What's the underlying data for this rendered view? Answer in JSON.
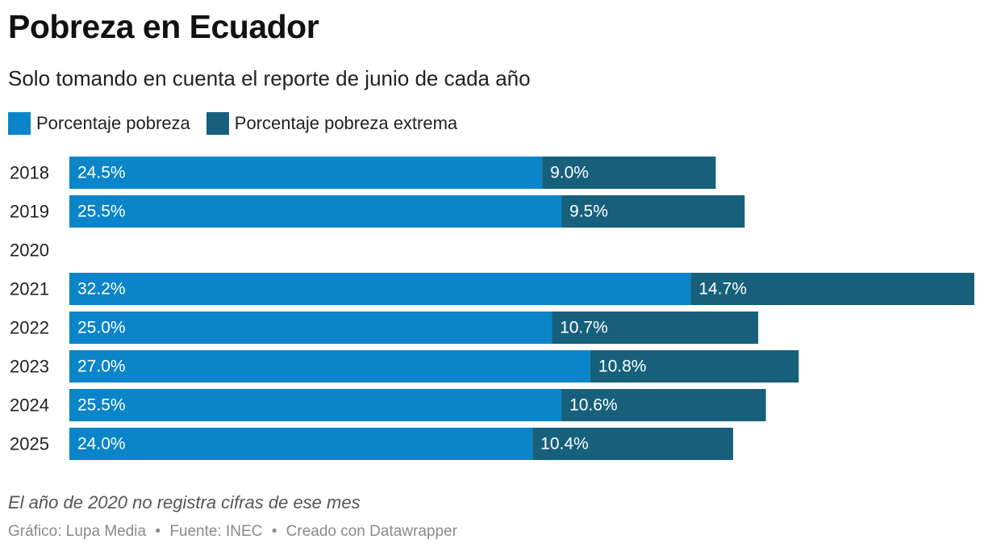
{
  "header": {
    "title": "Pobreza en Ecuador",
    "subtitle": "Solo tomando en cuenta el reporte de junio de cada año"
  },
  "colors": {
    "pobreza": "#0a85c9",
    "pobreza_extrema": "#17607c"
  },
  "chart_data": {
    "type": "bar",
    "orientation": "horizontal",
    "stacked": true,
    "categories": [
      "2018",
      "2019",
      "2020",
      "2021",
      "2022",
      "2023",
      "2024",
      "2025"
    ],
    "series": [
      {
        "name": "Porcentaje pobreza",
        "values": [
          24.5,
          25.5,
          null,
          32.2,
          25.0,
          27.0,
          25.5,
          24.0
        ],
        "labels": [
          "24.5%",
          "25.5%",
          "",
          "32.2%",
          "25.0%",
          "27.0%",
          "25.5%",
          "24.0%"
        ]
      },
      {
        "name": "Porcentaje pobreza extrema",
        "values": [
          9.0,
          9.5,
          null,
          14.7,
          10.7,
          10.8,
          10.6,
          10.4
        ],
        "labels": [
          "9.0%",
          "9.5%",
          "",
          "14.7%",
          "10.7%",
          "10.8%",
          "10.6%",
          "10.4%"
        ]
      }
    ],
    "xlim": [
      0,
      46.9
    ],
    "grid": false,
    "legend_position": "top-left"
  },
  "notes": {
    "text": "El año de 2020 no registra cifras de ese mes"
  },
  "footer": {
    "grafico": "Gráfico: Lupa Media",
    "fuente": "Fuente: INEC",
    "creado": "Creado con Datawrapper",
    "separator": "•"
  }
}
